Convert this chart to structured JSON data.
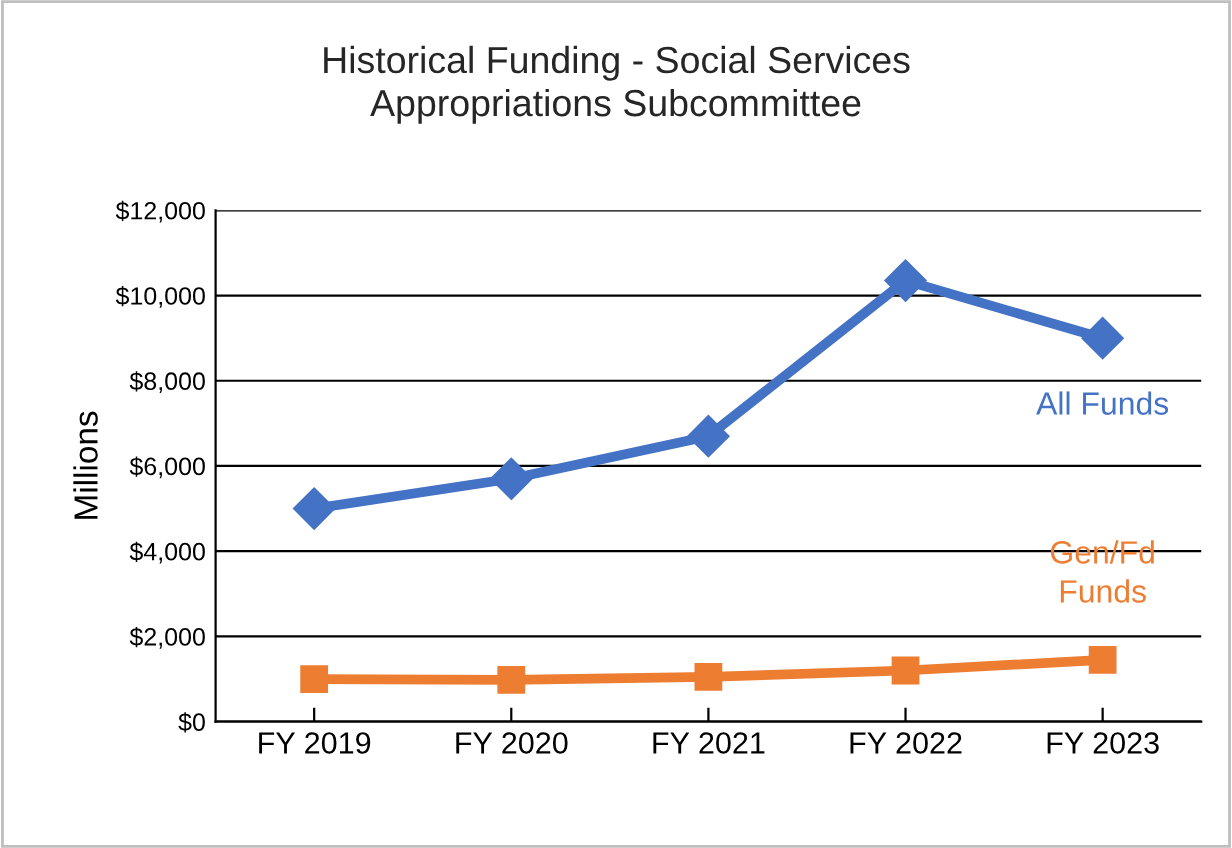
{
  "chart_data": {
    "type": "line",
    "title": "Historical Funding - Social Services\nAppropriations Subcommittee",
    "ylabel": "Millions",
    "categories": [
      "FY 2019",
      "FY 2020",
      "FY 2021",
      "FY 2022",
      "FY 2023"
    ],
    "series": [
      {
        "name": "All Funds",
        "color": "#4472c4",
        "values": [
          5000,
          5700,
          6700,
          10350,
          9000
        ],
        "marker": "diamond"
      },
      {
        "name": "Gen/Fd\nFunds",
        "color": "#ed7d31",
        "values": [
          1000,
          980,
          1050,
          1200,
          1450
        ],
        "marker": "square"
      }
    ],
    "ylim": [
      0,
      12000
    ],
    "yticks": [
      {
        "value": 0,
        "label": "$0"
      },
      {
        "value": 2000,
        "label": "$2,000"
      },
      {
        "value": 4000,
        "label": "$4,000"
      },
      {
        "value": 6000,
        "label": "$6,000"
      },
      {
        "value": 8000,
        "label": "$8,000"
      },
      {
        "value": 10000,
        "label": "$10,000"
      },
      {
        "value": 12000,
        "label": "$12,000"
      }
    ],
    "grid": "y",
    "legend": false,
    "line_style": "solid"
  }
}
